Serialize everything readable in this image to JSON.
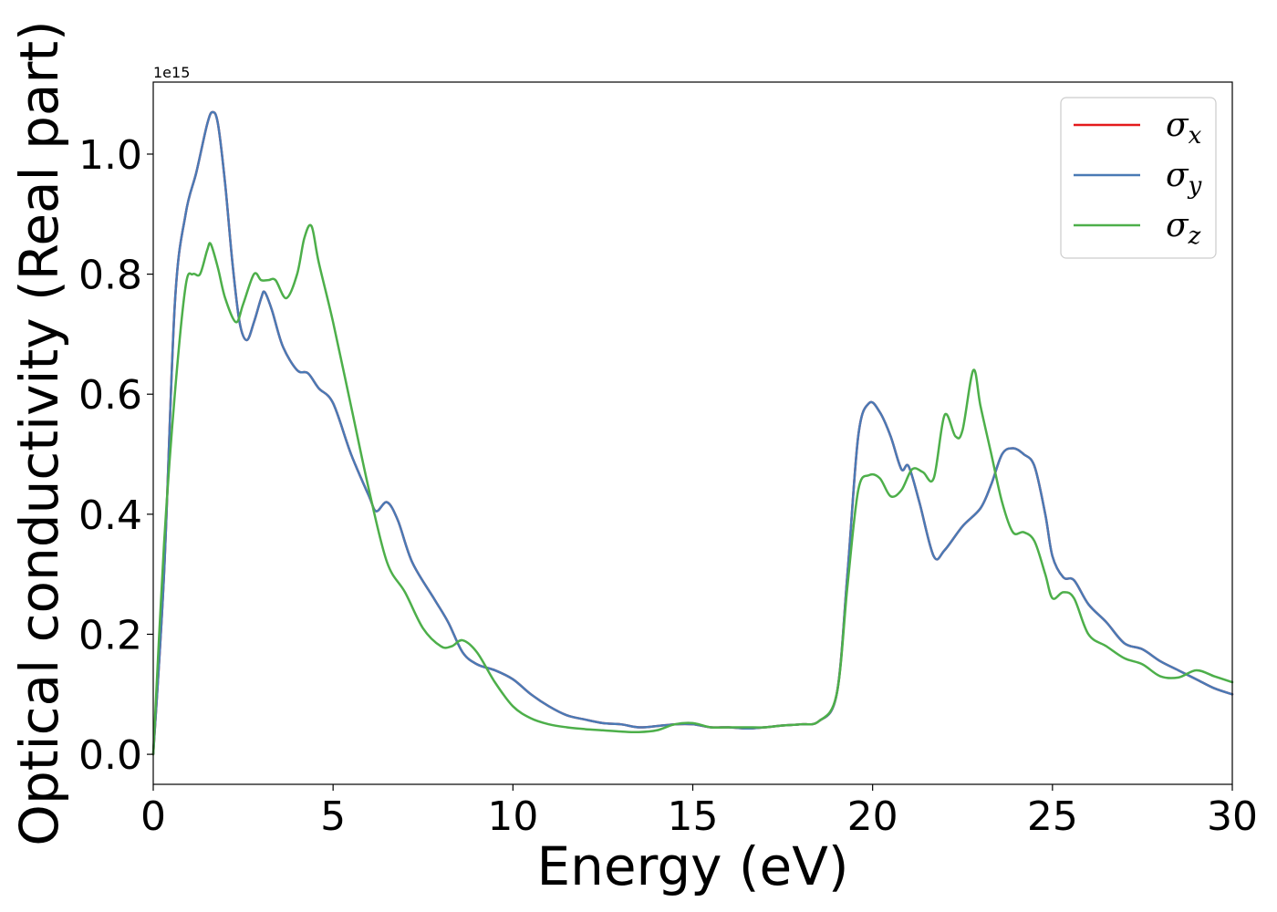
{
  "chart_data": {
    "type": "line",
    "xlabel": "Energy (eV)",
    "ylabel": "Optical conductivity (Real part)",
    "offset_text": "1e15",
    "xlim": [
      0,
      30
    ],
    "ylim": [
      -0.05,
      1.12
    ],
    "y_scale_factor": "1e15",
    "xticks": [
      0,
      5,
      10,
      15,
      20,
      25,
      30
    ],
    "xtick_labels": [
      "0",
      "5",
      "10",
      "15",
      "20",
      "25",
      "30"
    ],
    "yticks": [
      0.0,
      0.2,
      0.4,
      0.6,
      0.8,
      1.0
    ],
    "ytick_labels": [
      "0.0",
      "0.2",
      "0.4",
      "0.6",
      "0.8",
      "1.0"
    ],
    "grid": false,
    "legend_position": "top-right",
    "series": [
      {
        "name": "σx",
        "symbol": "σ",
        "subscript": "x",
        "color": "#e41a1c",
        "x": [
          0,
          0.3,
          0.6,
          0.9,
          1.2,
          1.5,
          1.65,
          1.8,
          2.0,
          2.2,
          2.4,
          2.6,
          2.8,
          3.0,
          3.1,
          3.3,
          3.6,
          4.0,
          4.3,
          4.6,
          5.0,
          5.5,
          6.0,
          6.2,
          6.5,
          6.8,
          7.2,
          7.8,
          8.2,
          8.6,
          9.0,
          9.5,
          10.0,
          10.5,
          11.0,
          11.5,
          12.0,
          12.5,
          13.0,
          13.5,
          14.0,
          14.5,
          15.0,
          15.5,
          16.0,
          16.5,
          17.0,
          17.5,
          18.0,
          18.5,
          19.0,
          19.3,
          19.6,
          19.9,
          20.2,
          20.5,
          20.8,
          21.0,
          21.3,
          21.7,
          22.0,
          22.5,
          23.0,
          23.3,
          23.6,
          23.9,
          24.2,
          24.5,
          24.8,
          25.0,
          25.3,
          25.6,
          26.0,
          26.5,
          27.0,
          27.5,
          28.0,
          28.5,
          29.0,
          29.5,
          30.0
        ],
        "y": [
          0.0,
          0.3,
          0.75,
          0.9,
          0.97,
          1.05,
          1.07,
          1.05,
          0.95,
          0.82,
          0.72,
          0.69,
          0.72,
          0.76,
          0.77,
          0.74,
          0.68,
          0.64,
          0.635,
          0.61,
          0.585,
          0.5,
          0.43,
          0.405,
          0.42,
          0.39,
          0.32,
          0.26,
          0.22,
          0.17,
          0.15,
          0.14,
          0.125,
          0.1,
          0.08,
          0.065,
          0.058,
          0.052,
          0.05,
          0.045,
          0.047,
          0.05,
          0.05,
          0.045,
          0.045,
          0.043,
          0.045,
          0.048,
          0.05,
          0.055,
          0.1,
          0.3,
          0.53,
          0.585,
          0.57,
          0.53,
          0.475,
          0.48,
          0.42,
          0.33,
          0.34,
          0.38,
          0.41,
          0.45,
          0.5,
          0.51,
          0.5,
          0.48,
          0.4,
          0.33,
          0.295,
          0.29,
          0.25,
          0.22,
          0.185,
          0.175,
          0.155,
          0.14,
          0.125,
          0.11,
          0.1
        ]
      },
      {
        "name": "σy",
        "symbol": "σ",
        "subscript": "y",
        "color": "#4a7ab5",
        "x": [
          0,
          0.3,
          0.6,
          0.9,
          1.2,
          1.5,
          1.65,
          1.8,
          2.0,
          2.2,
          2.4,
          2.6,
          2.8,
          3.0,
          3.1,
          3.3,
          3.6,
          4.0,
          4.3,
          4.6,
          5.0,
          5.5,
          6.0,
          6.2,
          6.5,
          6.8,
          7.2,
          7.8,
          8.2,
          8.6,
          9.0,
          9.5,
          10.0,
          10.5,
          11.0,
          11.5,
          12.0,
          12.5,
          13.0,
          13.5,
          14.0,
          14.5,
          15.0,
          15.5,
          16.0,
          16.5,
          17.0,
          17.5,
          18.0,
          18.5,
          19.0,
          19.3,
          19.6,
          19.9,
          20.2,
          20.5,
          20.8,
          21.0,
          21.3,
          21.7,
          22.0,
          22.5,
          23.0,
          23.3,
          23.6,
          23.9,
          24.2,
          24.5,
          24.8,
          25.0,
          25.3,
          25.6,
          26.0,
          26.5,
          27.0,
          27.5,
          28.0,
          28.5,
          29.0,
          29.5,
          30.0
        ],
        "y": [
          0.0,
          0.3,
          0.75,
          0.9,
          0.97,
          1.05,
          1.07,
          1.05,
          0.95,
          0.82,
          0.72,
          0.69,
          0.72,
          0.76,
          0.77,
          0.74,
          0.68,
          0.64,
          0.635,
          0.61,
          0.585,
          0.5,
          0.43,
          0.405,
          0.42,
          0.39,
          0.32,
          0.26,
          0.22,
          0.17,
          0.15,
          0.14,
          0.125,
          0.1,
          0.08,
          0.065,
          0.058,
          0.052,
          0.05,
          0.045,
          0.047,
          0.05,
          0.05,
          0.045,
          0.045,
          0.043,
          0.045,
          0.048,
          0.05,
          0.055,
          0.1,
          0.3,
          0.53,
          0.585,
          0.57,
          0.53,
          0.475,
          0.48,
          0.42,
          0.33,
          0.34,
          0.38,
          0.41,
          0.45,
          0.5,
          0.51,
          0.5,
          0.48,
          0.4,
          0.33,
          0.295,
          0.29,
          0.25,
          0.22,
          0.185,
          0.175,
          0.155,
          0.14,
          0.125,
          0.11,
          0.1
        ]
      },
      {
        "name": "σz",
        "symbol": "σ",
        "subscript": "z",
        "color": "#4daf4a",
        "x": [
          0,
          0.3,
          0.6,
          0.9,
          1.1,
          1.3,
          1.5,
          1.6,
          1.8,
          2.0,
          2.3,
          2.5,
          2.8,
          3.0,
          3.2,
          3.4,
          3.7,
          4.0,
          4.2,
          4.4,
          4.6,
          5.0,
          5.5,
          6.0,
          6.5,
          7.0,
          7.5,
          8.0,
          8.3,
          8.6,
          9.0,
          9.5,
          10.0,
          10.5,
          11.0,
          11.5,
          12.0,
          12.5,
          13.0,
          13.5,
          14.0,
          14.5,
          15.0,
          15.5,
          16.0,
          16.5,
          17.0,
          17.5,
          18.0,
          18.5,
          19.0,
          19.3,
          19.6,
          19.9,
          20.2,
          20.5,
          20.8,
          21.1,
          21.4,
          21.7,
          22.0,
          22.3,
          22.5,
          22.8,
          23.0,
          23.3,
          23.6,
          23.9,
          24.2,
          24.5,
          24.8,
          25.0,
          25.3,
          25.6,
          26.0,
          26.5,
          27.0,
          27.5,
          28.0,
          28.5,
          29.0,
          29.5,
          30.0
        ],
        "y": [
          0.0,
          0.35,
          0.6,
          0.78,
          0.8,
          0.8,
          0.84,
          0.85,
          0.81,
          0.76,
          0.72,
          0.75,
          0.8,
          0.79,
          0.79,
          0.79,
          0.76,
          0.8,
          0.86,
          0.88,
          0.82,
          0.72,
          0.58,
          0.44,
          0.32,
          0.27,
          0.21,
          0.18,
          0.18,
          0.19,
          0.17,
          0.12,
          0.08,
          0.06,
          0.05,
          0.045,
          0.042,
          0.04,
          0.038,
          0.037,
          0.04,
          0.05,
          0.052,
          0.045,
          0.045,
          0.045,
          0.045,
          0.048,
          0.05,
          0.055,
          0.1,
          0.28,
          0.44,
          0.465,
          0.46,
          0.43,
          0.44,
          0.475,
          0.47,
          0.46,
          0.565,
          0.53,
          0.54,
          0.64,
          0.58,
          0.5,
          0.42,
          0.37,
          0.37,
          0.355,
          0.3,
          0.26,
          0.27,
          0.26,
          0.2,
          0.18,
          0.16,
          0.15,
          0.13,
          0.128,
          0.14,
          0.13,
          0.12
        ]
      }
    ]
  }
}
